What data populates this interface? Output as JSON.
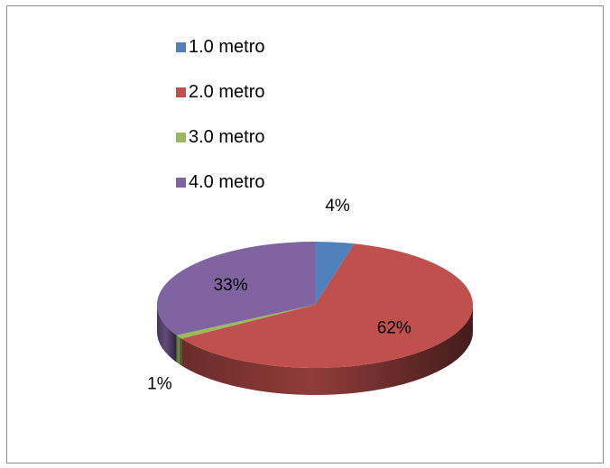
{
  "chart_data": {
    "type": "pie",
    "style": "3d",
    "legend_position": "top",
    "categories": [
      "1.0 metro",
      "2.0 metro",
      "3.0 metro",
      "4.0 metro"
    ],
    "values": [
      4,
      62,
      1,
      33
    ],
    "labels": [
      "4%",
      "62%",
      "1%",
      "33%"
    ],
    "colors": [
      "#4f81bd",
      "#c0504d",
      "#9bbb59",
      "#8064a2"
    ]
  }
}
